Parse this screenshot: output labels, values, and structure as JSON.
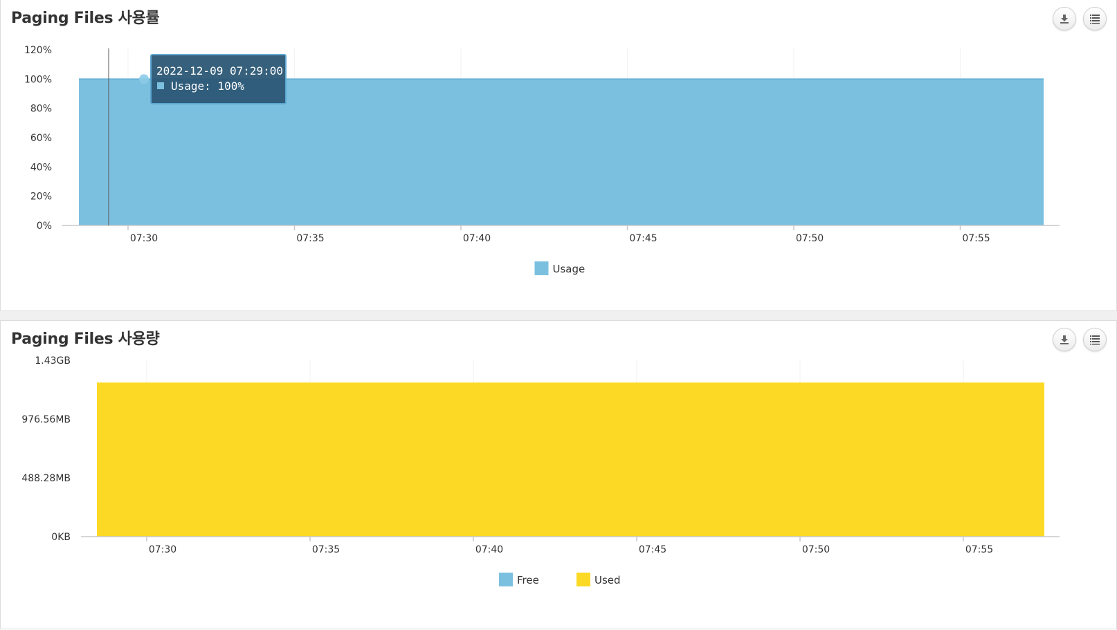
{
  "charts": [
    {
      "title": "Paging Files 사용률",
      "download_label": "download",
      "menu_label": "menu"
    },
    {
      "title": "Paging Files 사용량",
      "download_label": "download",
      "menu_label": "menu"
    }
  ],
  "tooltip": {
    "date": "2022-12-09 07:29:00",
    "series_label": "Usage",
    "value_text": "100%"
  },
  "chart_data": [
    {
      "type": "area",
      "title": "Paging Files 사용률",
      "xlabel": "",
      "ylabel": "",
      "x_ticks": [
        "07:30",
        "07:35",
        "07:40",
        "07:45",
        "07:50",
        "07:55"
      ],
      "y_ticks": [
        "0%",
        "20%",
        "40%",
        "60%",
        "80%",
        "100%",
        "120%"
      ],
      "ylim": [
        0,
        120
      ],
      "x_range": [
        "07:29",
        "07:58"
      ],
      "series": [
        {
          "name": "Usage",
          "color": "#7cc0e0",
          "x": [
            "07:29",
            "07:58"
          ],
          "values": [
            100,
            100
          ]
        }
      ],
      "legend": [
        "Usage"
      ],
      "legend_position": "bottom-center",
      "grid": "vertical"
    },
    {
      "type": "area",
      "title": "Paging Files 사용량",
      "xlabel": "",
      "ylabel": "",
      "x_ticks": [
        "07:30",
        "07:35",
        "07:40",
        "07:45",
        "07:50",
        "07:55"
      ],
      "y_ticks": [
        "0KB",
        "488.28MB",
        "976.56MB",
        "1.43GB"
      ],
      "y_tick_values_mb": [
        0,
        488.28,
        976.56,
        1464.84
      ],
      "ylim_mb": [
        0,
        1464.84
      ],
      "x_range": [
        "07:29",
        "07:58"
      ],
      "series": [
        {
          "name": "Free",
          "color": "#7cc0e0",
          "x": [
            "07:29",
            "07:58"
          ],
          "values_mb": [
            0,
            0
          ]
        },
        {
          "name": "Used",
          "color": "#fcd925",
          "x": [
            "07:29",
            "07:58"
          ],
          "values_mb": [
            1280,
            1280
          ]
        }
      ],
      "legend": [
        "Free",
        "Used"
      ],
      "legend_position": "bottom-center",
      "grid": "vertical"
    }
  ]
}
